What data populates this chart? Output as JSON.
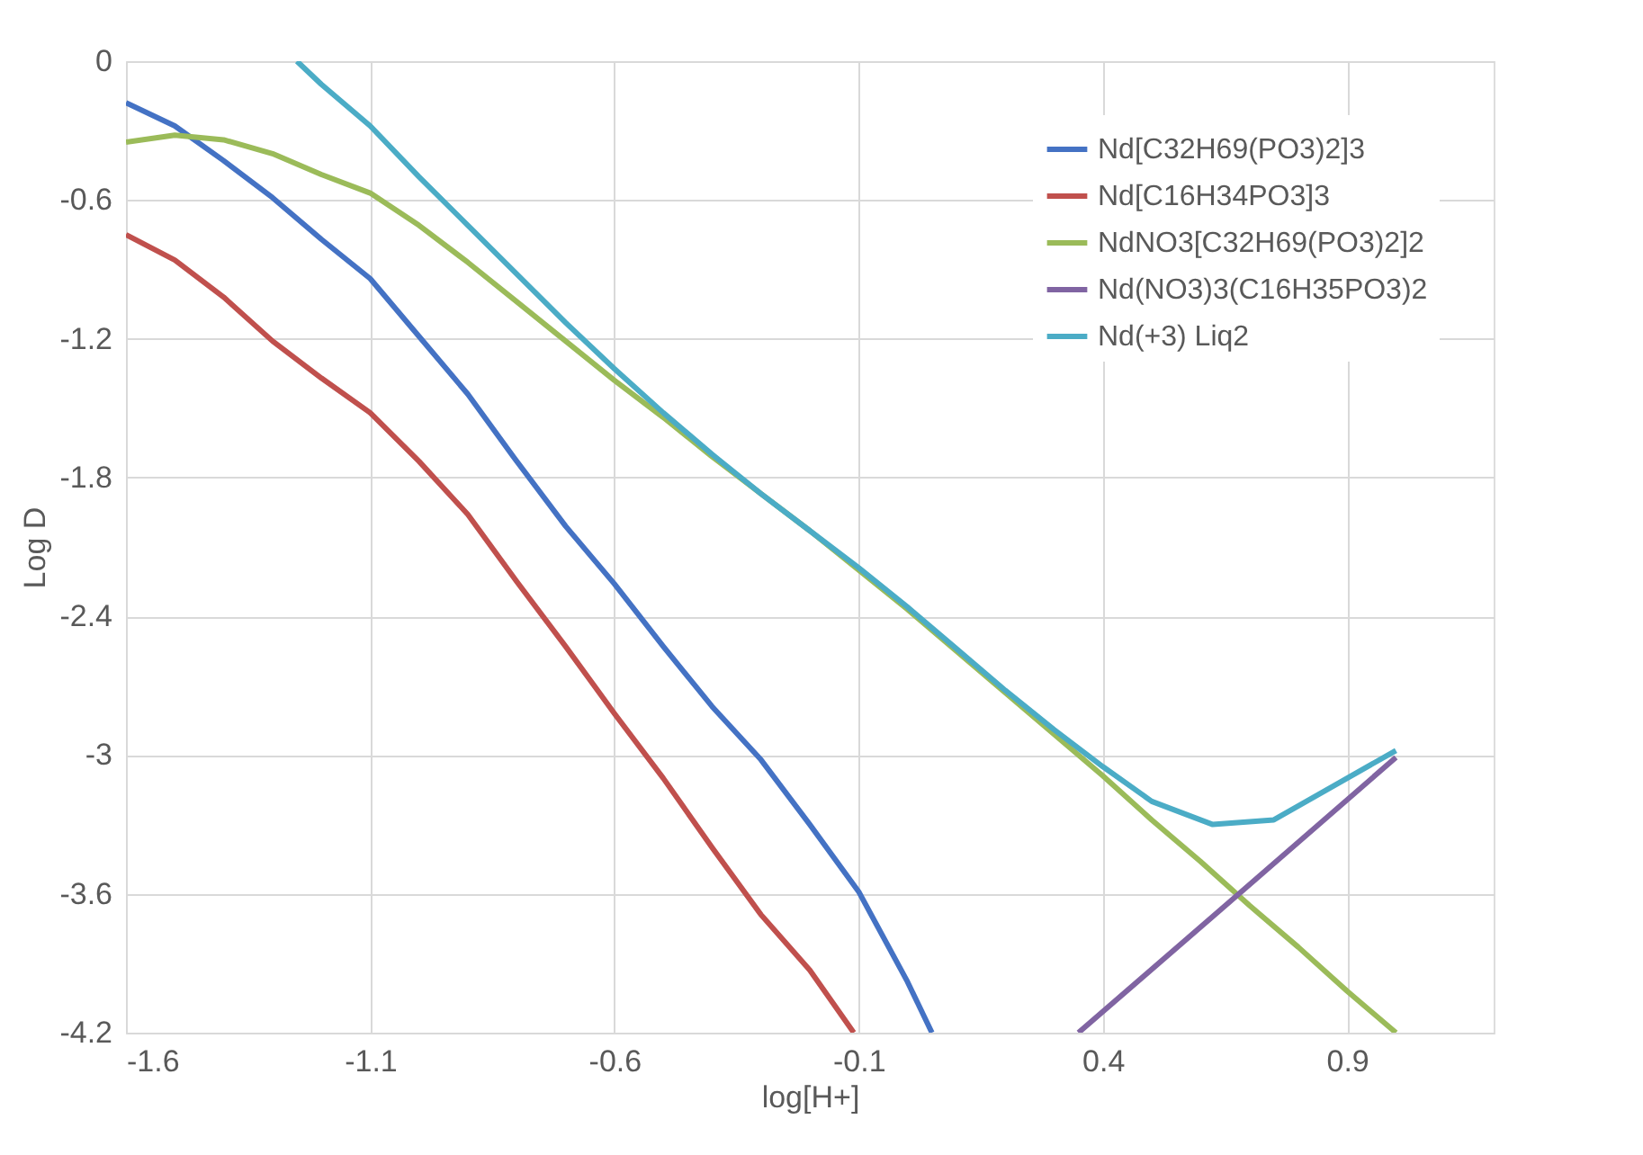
{
  "chart_data": {
    "type": "line",
    "xlabel": "log[H+]",
    "ylabel": "Log D",
    "xlim": [
      -1.6,
      1.2
    ],
    "xticks": [
      -1.6,
      -1.1,
      -0.6,
      -0.1,
      0.4,
      0.9
    ],
    "ylim": [
      -4.2,
      0
    ],
    "yticks": [
      0,
      -0.6,
      -1.2,
      -1.8,
      -2.4,
      -3,
      -3.6,
      -4.2
    ],
    "grid": true,
    "legend": "top right",
    "series": [
      {
        "name": "Nd[C32H69(PO3)2]3",
        "color": "#4472c4",
        "x": [
          -1.6,
          -1.5,
          -1.4,
          -1.3,
          -1.2,
          -1.1,
          -1.0,
          -0.9,
          -0.8,
          -0.7,
          -0.6,
          -0.5,
          -0.4,
          -0.3,
          -0.2,
          -0.1,
          0.0,
          0.05
        ],
        "values": [
          -0.18,
          -0.28,
          -0.43,
          -0.59,
          -0.77,
          -0.94,
          -1.19,
          -1.44,
          -1.73,
          -2.01,
          -2.26,
          -2.53,
          -2.79,
          -3.02,
          -3.3,
          -3.59,
          -3.98,
          -4.2
        ]
      },
      {
        "name": "Nd[C16H34PO3]3",
        "color": "#c0504d",
        "x": [
          -1.6,
          -1.5,
          -1.4,
          -1.3,
          -1.2,
          -1.1,
          -1.0,
          -0.9,
          -0.8,
          -0.7,
          -0.6,
          -0.5,
          -0.4,
          -0.3,
          -0.2,
          -0.11
        ],
        "values": [
          -0.75,
          -0.86,
          -1.02,
          -1.21,
          -1.37,
          -1.52,
          -1.73,
          -1.96,
          -2.25,
          -2.53,
          -2.82,
          -3.1,
          -3.4,
          -3.69,
          -3.93,
          -4.2
        ]
      },
      {
        "name": "NdNO3[C32H69(PO3)2]2",
        "color": "#9bbb59",
        "x": [
          -1.6,
          -1.5,
          -1.4,
          -1.3,
          -1.2,
          -1.1,
          -1.0,
          -0.9,
          -0.8,
          -0.7,
          -0.6,
          -0.5,
          -0.4,
          -0.3,
          -0.2,
          -0.1,
          0.0,
          0.1,
          0.2,
          0.3,
          0.4,
          0.5,
          0.6,
          0.7,
          0.8,
          0.9,
          1.0
        ],
        "values": [
          -0.35,
          -0.32,
          -0.34,
          -0.4,
          -0.49,
          -0.57,
          -0.71,
          -0.87,
          -1.04,
          -1.21,
          -1.38,
          -1.54,
          -1.71,
          -1.87,
          -2.03,
          -2.2,
          -2.37,
          -2.55,
          -2.73,
          -2.91,
          -3.09,
          -3.28,
          -3.46,
          -3.65,
          -3.83,
          -4.02,
          -4.2
        ]
      },
      {
        "name": "Nd(NO3)3(C16H35PO3)2",
        "color": "#8064a2",
        "x": [
          0.35,
          0.673,
          1.0
        ],
        "values": [
          -4.2,
          -3.61,
          -3.01
        ]
      },
      {
        "name": "Nd(+3) Liq2",
        "color": "#4bacc6",
        "x": [
          -1.25,
          -1.2,
          -1.1,
          -1.0,
          -0.9,
          -0.8,
          -0.7,
          -0.6,
          -0.5,
          -0.4,
          -0.3,
          -0.2,
          -0.1,
          0.0,
          0.1,
          0.2,
          0.3,
          0.4,
          0.5,
          0.625,
          0.75,
          0.875,
          1.0
        ],
        "values": [
          0,
          -0.1,
          -0.28,
          -0.5,
          -0.71,
          -0.92,
          -1.13,
          -1.33,
          -1.52,
          -1.7,
          -1.87,
          -2.03,
          -2.19,
          -2.36,
          -2.54,
          -2.72,
          -2.89,
          -3.05,
          -3.2,
          -3.3,
          -3.28,
          -3.13,
          -2.98
        ]
      }
    ]
  }
}
